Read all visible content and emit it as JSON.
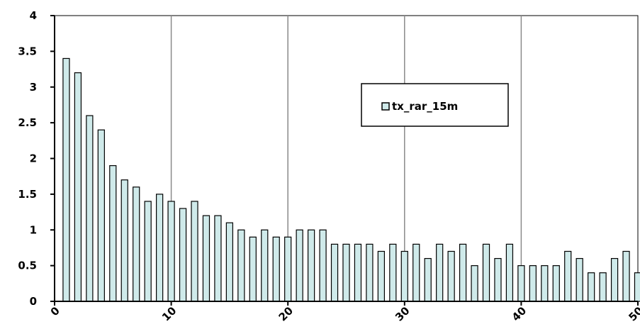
{
  "chart_data": {
    "type": "bar",
    "title": "",
    "xlabel": "",
    "ylabel": "",
    "xlim": [
      0,
      50
    ],
    "ylim": [
      0,
      4
    ],
    "y_ticks": [
      "0",
      "0.5",
      "1",
      "1.5",
      "2",
      "2.5",
      "3",
      "3.5",
      "4"
    ],
    "x_ticks": [
      "0",
      "10",
      "20",
      "30",
      "40",
      "50"
    ],
    "grid": "vertical at x ticks",
    "legend_position": "top-right",
    "series": [
      {
        "name": "tx_rar_15m",
        "color": "#cfeaea",
        "x": [
          1,
          2,
          3,
          4,
          5,
          6,
          7,
          8,
          9,
          10,
          11,
          12,
          13,
          14,
          15,
          16,
          17,
          18,
          19,
          20,
          21,
          22,
          23,
          24,
          25,
          26,
          27,
          28,
          29,
          30,
          31,
          32,
          33,
          34,
          35,
          36,
          37,
          38,
          39,
          40,
          41,
          42,
          43,
          44,
          45,
          46,
          47,
          48,
          49,
          50
        ],
        "values": [
          3.4,
          3.2,
          2.6,
          2.4,
          1.9,
          1.7,
          1.6,
          1.4,
          1.5,
          1.4,
          1.3,
          1.4,
          1.2,
          1.2,
          1.1,
          1.0,
          0.9,
          1.0,
          0.9,
          0.9,
          1.0,
          1.0,
          1.0,
          0.8,
          0.8,
          0.8,
          0.8,
          0.7,
          0.8,
          0.7,
          0.8,
          0.6,
          0.8,
          0.7,
          0.8,
          0.5,
          0.8,
          0.6,
          0.8,
          0.5,
          0.5,
          0.5,
          0.5,
          0.7,
          0.6,
          0.4,
          0.4,
          0.6,
          0.7,
          0.4
        ]
      }
    ]
  }
}
